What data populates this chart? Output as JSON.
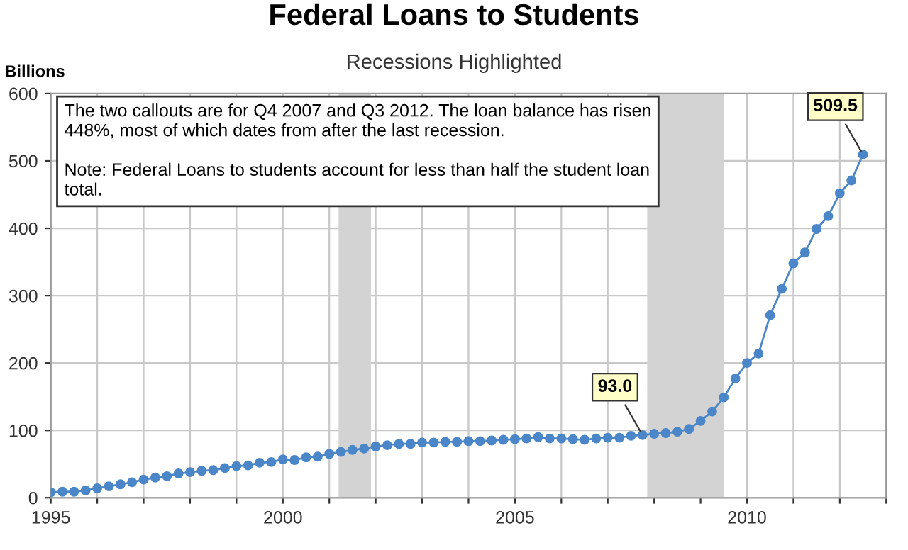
{
  "chart_data": {
    "type": "line",
    "title": "Federal Loans to Students",
    "subtitle": "Recessions Highlighted",
    "ylabel": "Billions",
    "x": [
      1995,
      1995.25,
      1995.5,
      1995.75,
      1996,
      1996.25,
      1996.5,
      1996.75,
      1997,
      1997.25,
      1997.5,
      1997.75,
      1998,
      1998.25,
      1998.5,
      1998.75,
      1999,
      1999.25,
      1999.5,
      1999.75,
      2000,
      2000.25,
      2000.5,
      2000.75,
      2001,
      2001.25,
      2001.5,
      2001.75,
      2002,
      2002.25,
      2002.5,
      2002.75,
      2003,
      2003.25,
      2003.5,
      2003.75,
      2004,
      2004.25,
      2004.5,
      2004.75,
      2005,
      2005.25,
      2005.5,
      2005.75,
      2006,
      2006.25,
      2006.5,
      2006.75,
      2007,
      2007.25,
      2007.5,
      2007.75,
      2008,
      2008.25,
      2008.5,
      2008.75,
      2009,
      2009.25,
      2009.5,
      2009.75,
      2010,
      2010.25,
      2010.5,
      2010.75,
      2011,
      2011.25,
      2011.5,
      2011.75,
      2012,
      2012.25,
      2012.5
    ],
    "series": [
      {
        "color": "#4a86c8",
        "values": [
          8,
          9,
          9,
          11,
          14,
          17,
          20,
          23,
          27,
          30,
          32,
          36,
          38,
          40,
          41,
          44,
          47,
          48,
          52,
          53,
          57,
          56,
          60,
          61,
          65,
          68,
          71,
          73,
          76,
          78,
          80,
          80,
          82,
          82,
          83,
          83,
          84,
          84,
          85,
          86,
          87,
          88,
          90,
          88,
          88,
          87,
          86,
          88,
          89,
          89,
          92,
          93.0,
          95,
          96,
          98,
          102,
          114,
          128,
          149,
          177,
          200,
          214,
          271,
          310,
          348,
          364,
          399,
          418,
          452,
          471,
          509.5
        ]
      }
    ],
    "xlim": [
      1995,
      2013
    ],
    "ylim": [
      0,
      600
    ],
    "xticks": [
      1995,
      {
        "value": 1996,
        "label": null
      },
      {
        "value": 1997,
        "label": null
      },
      {
        "value": 1998,
        "label": null
      },
      {
        "value": 1999,
        "label": null
      },
      2000,
      {
        "value": 2001,
        "label": null
      },
      {
        "value": 2002,
        "label": null
      },
      {
        "value": 2003,
        "label": null
      },
      {
        "value": 2004,
        "label": null
      },
      2005,
      {
        "value": 2006,
        "label": null
      },
      {
        "value": 2007,
        "label": null
      },
      {
        "value": 2008,
        "label": null
      },
      {
        "value": 2009,
        "label": null
      },
      2010,
      {
        "value": 2011,
        "label": null
      },
      {
        "value": 2012,
        "label": null
      },
      {
        "value": 2013,
        "label": null
      }
    ],
    "yticks": [
      0,
      100,
      200,
      300,
      400,
      500,
      600
    ],
    "grid": true,
    "marker": "circle",
    "line_style": "solid",
    "bands": [
      {
        "axis": "x",
        "from": 2001.2,
        "to": 2001.9,
        "color": "#d3d3d3"
      },
      {
        "axis": "x",
        "from": 2007.85,
        "to": 2009.5,
        "color": "#d3d3d3"
      }
    ],
    "annotations": [
      "The two callouts are for Q4 2007 and Q3 2012. The loan balance has risen 448%, most of which dates from after the last recession.",
      "Note: Federal Loans to students account for less than half the student loan total.",
      {
        "text": "93.0",
        "x": 2007.75,
        "y": 93.0
      },
      {
        "text": "509.5",
        "x": 2012.5,
        "y": 509.5
      }
    ]
  }
}
